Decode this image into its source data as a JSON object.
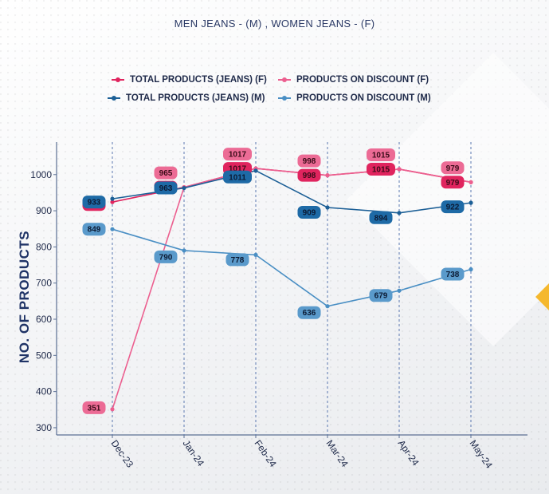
{
  "chart_data": {
    "type": "line",
    "title": "MEN JEANS - (M) , WOMEN JEANS - (F)",
    "ylabel": "NO. OF PRODUCTS",
    "xlabel": "",
    "categories": [
      "Dec-23",
      "Jan-24",
      "Feb-24",
      "Mar-24",
      "Apr-24",
      "May-24"
    ],
    "ylim": [
      280,
      1090
    ],
    "yticks": [
      300,
      400,
      500,
      600,
      700,
      800,
      900,
      1000
    ],
    "legend_position": "top",
    "series": [
      {
        "name": "TOTAL PRODUCTS (JEANS) (F)",
        "color": "#e0245e",
        "label_bg": "#e0245e",
        "label_fg": "#3a0b18",
        "values": [
          924,
          965,
          1017,
          998,
          1015,
          979
        ]
      },
      {
        "name": "PRODUCTS ON DISCOUNT (F)",
        "color": "#ec5f8f",
        "label_bg": "#ec6b95",
        "label_fg": "#3a0b18",
        "values": [
          351,
          965,
          1017,
          998,
          1015,
          979
        ]
      },
      {
        "name": "TOTAL PRODUCTS (JEANS) (M)",
        "color": "#1c5f96",
        "label_bg": "#1e6aa6",
        "label_fg": "#0b1a33",
        "values": [
          933,
          963,
          1011,
          909,
          894,
          922
        ]
      },
      {
        "name": "PRODUCTS ON DISCOUNT (M)",
        "color": "#4a8fc4",
        "label_bg": "#5a9acb",
        "label_fg": "#0b1a33",
        "values": [
          849,
          790,
          778,
          636,
          679,
          738
        ]
      }
    ]
  }
}
